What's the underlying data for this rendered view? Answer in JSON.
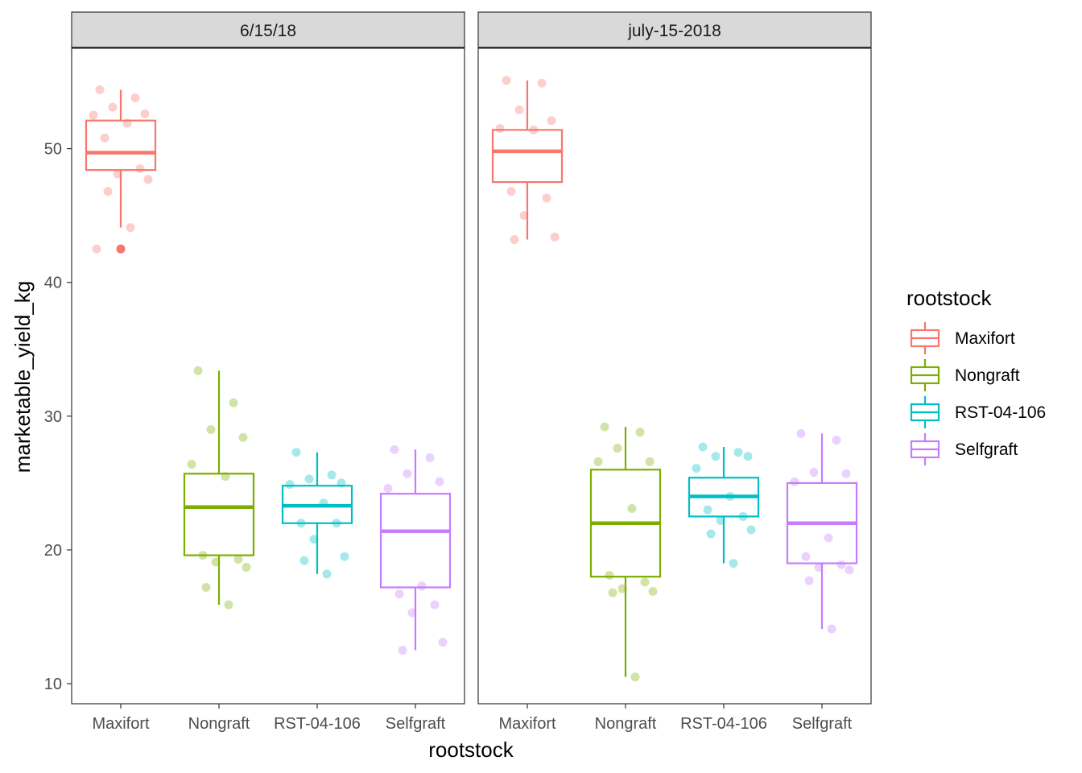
{
  "chart_data": {
    "type": "boxplot",
    "xlabel": "rootstock",
    "ylabel": "marketable_yield_kg",
    "ylim": [
      8.5,
      57.5
    ],
    "y_ticks": [
      10,
      20,
      30,
      40,
      50
    ],
    "categories": [
      "Maxifort",
      "Nongraft",
      "RST-04-106",
      "Selfgraft"
    ],
    "legend": {
      "title": "rootstock",
      "position": "right",
      "items": [
        "Maxifort",
        "Nongraft",
        "RST-04-106",
        "Selfgraft"
      ]
    },
    "colors": {
      "Maxifort": "#F8766D",
      "Nongraft": "#7CAE00",
      "RST-04-106": "#00BFC4",
      "Selfgraft": "#C77CFF"
    },
    "grid": false,
    "panels": [
      {
        "strip": "6/15/18",
        "boxes": [
          {
            "category": "Maxifort",
            "min": 44.1,
            "q1": 48.4,
            "median": 49.7,
            "q3": 52.1,
            "max": 54.4,
            "outliers": [
              42.5
            ]
          },
          {
            "category": "Nongraft",
            "min": 15.9,
            "q1": 19.6,
            "median": 23.2,
            "q3": 25.7,
            "max": 33.4,
            "outliers": []
          },
          {
            "category": "RST-04-106",
            "min": 18.2,
            "q1": 22.0,
            "median": 23.3,
            "q3": 24.8,
            "max": 27.3,
            "outliers": []
          },
          {
            "category": "Selfgraft",
            "min": 12.5,
            "q1": 17.2,
            "median": 21.4,
            "q3": 24.2,
            "max": 27.5,
            "outliers": []
          }
        ],
        "points": [
          {
            "category": "Maxifort",
            "values": [
              54.4,
              53.8,
              53.1,
              52.6,
              52.5,
              51.9,
              50.8,
              48.5,
              48.1,
              47.7,
              46.8,
              44.1,
              42.5
            ]
          },
          {
            "category": "Nongraft",
            "values": [
              33.4,
              31.0,
              29.0,
              28.4,
              26.4,
              25.5,
              19.6,
              19.3,
              19.1,
              18.7,
              17.2,
              15.9
            ]
          },
          {
            "category": "RST-04-106",
            "values": [
              27.3,
              25.6,
              25.3,
              25.0,
              24.9,
              23.5,
              22.0,
              22.0,
              20.8,
              19.5,
              19.2,
              18.2
            ]
          },
          {
            "category": "Selfgraft",
            "values": [
              27.5,
              26.9,
              25.7,
              25.1,
              24.6,
              17.3,
              16.7,
              15.9,
              15.3,
              13.1,
              12.5
            ]
          }
        ]
      },
      {
        "strip": "july-15-2018",
        "boxes": [
          {
            "category": "Maxifort",
            "min": 43.2,
            "q1": 47.5,
            "median": 49.8,
            "q3": 51.4,
            "max": 55.1,
            "outliers": []
          },
          {
            "category": "Nongraft",
            "min": 10.5,
            "q1": 18.0,
            "median": 22.0,
            "q3": 26.0,
            "max": 29.2,
            "outliers": []
          },
          {
            "category": "RST-04-106",
            "min": 19.0,
            "q1": 22.5,
            "median": 24.0,
            "q3": 25.4,
            "max": 27.7,
            "outliers": []
          },
          {
            "category": "Selfgraft",
            "min": 14.1,
            "q1": 19.0,
            "median": 22.0,
            "q3": 25.0,
            "max": 28.7,
            "outliers": []
          }
        ],
        "points": [
          {
            "category": "Maxifort",
            "values": [
              55.1,
              54.9,
              52.9,
              52.1,
              51.5,
              51.4,
              46.8,
              46.3,
              45.0,
              43.4,
              43.2
            ]
          },
          {
            "category": "Nongraft",
            "values": [
              29.2,
              28.8,
              27.6,
              26.6,
              26.6,
              23.1,
              18.1,
              17.6,
              17.1,
              16.9,
              16.8,
              10.5
            ]
          },
          {
            "category": "RST-04-106",
            "values": [
              27.7,
              27.3,
              27.0,
              27.0,
              26.1,
              24.0,
              23.0,
              22.5,
              22.2,
              21.5,
              21.2,
              19.0
            ]
          },
          {
            "category": "Selfgraft",
            "values": [
              28.7,
              28.2,
              25.8,
              25.7,
              25.1,
              20.9,
              19.5,
              18.9,
              18.7,
              18.5,
              17.7,
              14.1
            ]
          }
        ]
      }
    ]
  }
}
